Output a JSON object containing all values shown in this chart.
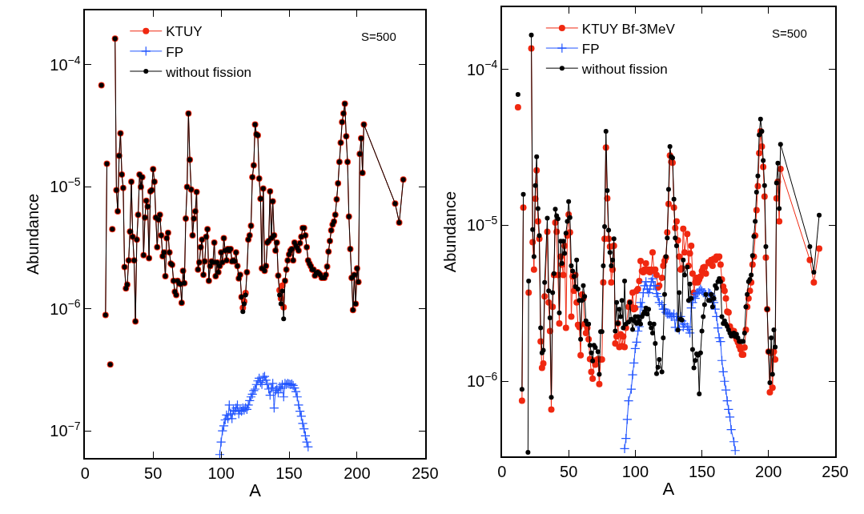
{
  "chart_data": [
    {
      "type": "line",
      "xlabel": "A",
      "ylabel": "Abundance",
      "log": true,
      "legend": "top",
      "annotations": [
        "S=500"
      ],
      "xlim": [
        0,
        250
      ],
      "xticks": [
        0,
        50,
        100,
        150,
        200,
        250
      ],
      "ylim": [
        6e-08,
        0.00028
      ],
      "yticks": [
        {
          "value": 1e-07,
          "label": "10$^{−7}$"
        },
        {
          "value": 1e-06,
          "label": "10$^{−6}$"
        },
        {
          "value": 1e-05,
          "label": "10$^{−5}$"
        },
        {
          "value": 0.0001,
          "label": "10$^{−4}$"
        }
      ],
      "series": [
        {
          "name": "KTUY",
          "color": "#f02810",
          "marker": "circle",
          "x": [
            12,
            13,
            15,
            16,
            17,
            18.5,
            19.5,
            20,
            21,
            22,
            23,
            24,
            25,
            26,
            27,
            28,
            29,
            30,
            31,
            32,
            33,
            34,
            35,
            36,
            37,
            38,
            39,
            40,
            41,
            42,
            43,
            44,
            45,
            46,
            47,
            48,
            49,
            50,
            51,
            52,
            53,
            54,
            55,
            56,
            57,
            58,
            59,
            60,
            61,
            62,
            63,
            64,
            65,
            66,
            67,
            68,
            69,
            70,
            71,
            72,
            73,
            74,
            75,
            76,
            77,
            78,
            79,
            80,
            81,
            82,
            83,
            84,
            85,
            86,
            87,
            88,
            89,
            90,
            91,
            92,
            93,
            94,
            95,
            96,
            97,
            98,
            99,
            100,
            101,
            102,
            103,
            104,
            105,
            106,
            107,
            108,
            109,
            110,
            111,
            112,
            113,
            114,
            115,
            116,
            117,
            118,
            119,
            120,
            121,
            122,
            123,
            124,
            125,
            126,
            127,
            128,
            129,
            130,
            131,
            132,
            133,
            134,
            135,
            136,
            137,
            138,
            139,
            140,
            141,
            142,
            143,
            144,
            145,
            146,
            147,
            148,
            149,
            150,
            151,
            152,
            153,
            154,
            155,
            156,
            157,
            158,
            159,
            160,
            161,
            162,
            163,
            164,
            165,
            166,
            167,
            168,
            169,
            170,
            171,
            172,
            173,
            174,
            175,
            176,
            177,
            178,
            179,
            180,
            181,
            182,
            183,
            184,
            185,
            186,
            187,
            188,
            189,
            190,
            191,
            192,
            193,
            194,
            195,
            196,
            197,
            198,
            199,
            200,
            201,
            202,
            203,
            204,
            205,
            228,
            231,
            234
          ],
          "values": [
            6.8e-05,
            null,
            8.9e-07,
            1.55e-05,
            null,
            3.5e-07,
            null,
            4.5e-06,
            null,
            0.000164,
            9.4e-06,
            6.3e-06,
            1.8e-05,
            2.75e-05,
            1.26e-05,
            9.8e-06,
            2.2e-06,
            1.47e-06,
            1.58e-06,
            2.5e-06,
            4.3e-06,
            1.1e-05,
            3.9e-06,
            2.5e-06,
            7.9e-07,
            3.7e-06,
            5.9e-06,
            1.26e-05,
            1e-05,
            1.2e-05,
            2.75e-06,
            5.6e-06,
            7.7e-06,
            6.9e-06,
            2.6e-06,
            9.2e-06,
            9.4e-06,
            1.4e-05,
            1.1e-05,
            5.6e-06,
            3.2e-06,
            5.4e-06,
            5.9e-06,
            4e-06,
            2.7e-06,
            2.9e-06,
            1.85e-06,
            3.8e-06,
            4.2e-06,
            2.9e-06,
            2.35e-06,
            2.3e-06,
            1.7e-06,
            1.38e-06,
            1.3e-06,
            1.7e-06,
            1.62e-06,
            1.6e-06,
            1.12e-06,
            2.05e-06,
            1.62e-06,
            5.5e-06,
            1e-05,
            4e-05,
            1.67e-05,
            9.5e-06,
            4e-06,
            5.5e-06,
            6.3e-06,
            9.1e-06,
            2.1e-06,
            2.4e-06,
            3.2e-06,
            3.7e-06,
            1.9e-06,
            2.45e-06,
            3.9e-06,
            4.5e-06,
            1.7e-06,
            2.25e-06,
            2.45e-06,
            2.4e-06,
            3.5e-06,
            1.85e-06,
            2.4e-06,
            2e-06,
            2.25e-06,
            2.9e-06,
            2.4e-06,
            3.8e-06,
            3e-06,
            2.5e-06,
            3.1e-06,
            3e-06,
            3.1e-06,
            2.45e-06,
            2.5e-06,
            2.45e-06,
            2.9e-06,
            2.25e-06,
            1.78e-06,
            1.9e-06,
            1.25e-06,
            1.02e-06,
            1.15e-06,
            1.35e-06,
            2e-06,
            3.7e-06,
            4e-06,
            4.8e-06,
            1.2e-05,
            1.5e-05,
            3.25e-05,
            2.7e-05,
            2.65e-05,
            1.17e-05,
            8e-06,
            2.15e-06,
            9.7e-06,
            2.05e-06,
            2.25e-06,
            3.5e-06,
            3.6e-06,
            9.2e-06,
            3.8e-06,
            7.6e-06,
            4e-06,
            3e-06,
            3.5e-06,
            1.87e-06,
            1.42e-06,
            1.22e-06,
            1.55e-06,
            1.03e-06,
            1.7e-06,
            2.1e-06,
            2.5e-06,
            2.8e-06,
            3e-06,
            3.1e-06,
            2.5e-06,
            3.5e-06,
            3.3e-06,
            3.15e-06,
            3e-06,
            3.45e-06,
            3.9e-06,
            4.6e-06,
            4.6e-06,
            4e-06,
            3.2e-06,
            2.5e-06,
            2.35e-06,
            2.24e-06,
            2.1e-06,
            2.1e-06,
            1.87e-06,
            1.95e-06,
            2e-06,
            1.95e-06,
            1.9e-06,
            1.8e-06,
            1.8e-06,
            1.8e-06,
            1.9e-06,
            2.22e-06,
            2.95e-06,
            3.6e-06,
            4.4e-06,
            4.9e-06,
            5.2e-06,
            5.9e-06,
            7.9e-06,
            1.07e-05,
            1.6e-05,
            2.3e-05,
            3.4e-05,
            4e-05,
            4.8e-05,
            2.6e-05,
            1.6e-05,
            5.7e-06,
            3.1e-06,
            1.8e-06,
            9.8e-07,
            1.9e-06,
            1.1e-06,
            2.15e-06,
            1.66e-06,
            1.86e-05,
            2.5e-05,
            1.3e-05,
            3.25e-05,
            7.3e-06,
            5.1e-06,
            1.15e-05
          ]
        },
        {
          "name": "FP",
          "color": "#2255ff",
          "marker": "cross",
          "x": [
            99,
            100,
            101,
            102,
            103,
            104,
            105,
            106,
            107,
            108,
            109,
            110,
            111,
            112,
            113,
            114,
            115,
            116,
            117,
            118,
            119,
            120,
            121,
            122,
            123,
            124,
            125,
            126,
            127,
            128,
            129,
            130,
            131,
            132,
            133,
            134,
            135,
            136,
            137,
            138,
            139,
            140,
            141,
            142,
            143,
            144,
            145,
            146,
            147,
            148,
            149,
            150,
            151,
            152,
            153,
            154,
            155,
            156,
            157,
            158,
            159,
            160,
            161,
            162,
            163,
            164
          ],
          "values": [
            6.4e-08,
            8.1e-08,
            1e-07,
            1.1e-07,
            1.23e-07,
            1.35e-07,
            1.26e-07,
            1.63e-07,
            1.38e-07,
            1.26e-07,
            1.48e-07,
            1.45e-07,
            1.54e-07,
            1.63e-07,
            1.38e-07,
            1.48e-07,
            1.45e-07,
            1.54e-07,
            1.48e-07,
            1.55e-07,
            1.5e-07,
            1.63e-07,
            1.77e-07,
            1.9e-07,
            2e-07,
            2.14e-07,
            2.2e-07,
            2.4e-07,
            2.57e-07,
            2.7e-07,
            2.5e-07,
            2.4e-07,
            2.75e-07,
            2.8e-07,
            2.6e-07,
            2.4e-07,
            2.2e-07,
            1.96e-07,
            2.25e-07,
            2.45e-07,
            1.54e-07,
            2.14e-07,
            2.2e-07,
            2.05e-07,
            2.3e-07,
            2.23e-07,
            2.4e-07,
            1.9e-07,
            2.45e-07,
            2.4e-07,
            2.45e-07,
            2.42e-07,
            2.4e-07,
            2.42e-07,
            2.36e-07,
            2.25e-07,
            2.1e-07,
            1.9e-07,
            1.63e-07,
            1.45e-07,
            1.32e-07,
            1.15e-07,
            1.04e-07,
            9.1e-08,
            8.1e-08,
            7.4e-08
          ]
        },
        {
          "name": "without fission",
          "color": "#000000",
          "marker": "circle",
          "x": [
            12,
            13,
            15,
            16,
            17,
            18.5,
            19.5,
            20,
            21,
            22,
            23,
            24,
            25,
            26,
            27,
            28,
            29,
            30,
            31,
            32,
            33,
            34,
            35,
            36,
            37,
            38,
            39,
            40,
            41,
            42,
            43,
            44,
            45,
            46,
            47,
            48,
            49,
            50,
            51,
            52,
            53,
            54,
            55,
            56,
            57,
            58,
            59,
            60,
            61,
            62,
            63,
            64,
            65,
            66,
            67,
            68,
            69,
            70,
            71,
            72,
            73,
            74,
            75,
            76,
            77,
            78,
            79,
            80,
            81,
            82,
            83,
            84,
            85,
            86,
            87,
            88,
            89,
            90,
            91,
            92,
            93,
            94,
            95,
            96,
            97,
            98,
            99,
            100,
            101,
            102,
            103,
            104,
            105,
            106,
            107,
            108,
            109,
            110,
            111,
            112,
            113,
            114,
            115,
            116,
            117,
            118,
            119,
            120,
            121,
            122,
            123,
            124,
            125,
            126,
            127,
            128,
            129,
            130,
            131,
            132,
            133,
            134,
            135,
            136,
            137,
            138,
            139,
            140,
            141,
            142,
            143,
            144,
            145,
            146,
            147,
            148,
            149,
            150,
            151,
            152,
            153,
            154,
            155,
            156,
            157,
            158,
            159,
            160,
            161,
            162,
            163,
            164,
            165,
            166,
            167,
            168,
            169,
            170,
            171,
            172,
            173,
            174,
            175,
            176,
            177,
            178,
            179,
            180,
            181,
            182,
            183,
            184,
            185,
            186,
            187,
            188,
            189,
            190,
            191,
            192,
            193,
            194,
            195,
            196,
            197,
            198,
            199,
            200,
            201,
            202,
            203,
            204,
            205,
            228,
            231,
            234
          ],
          "values": [
            6.8e-05,
            null,
            8.9e-07,
            1.55e-05,
            null,
            3.5e-07,
            null,
            4.5e-06,
            null,
            0.000164,
            9.4e-06,
            6.3e-06,
            1.8e-05,
            2.75e-05,
            1.26e-05,
            9.8e-06,
            2.2e-06,
            1.47e-06,
            1.58e-06,
            2.5e-06,
            4.3e-06,
            1.1e-05,
            3.9e-06,
            2.5e-06,
            7.9e-07,
            3.7e-06,
            5.9e-06,
            1.26e-05,
            1e-05,
            1.2e-05,
            2.75e-06,
            5.6e-06,
            7.7e-06,
            6.9e-06,
            2.6e-06,
            9.2e-06,
            9.4e-06,
            1.4e-05,
            1.1e-05,
            5.6e-06,
            3.2e-06,
            5.4e-06,
            5.9e-06,
            4e-06,
            2.7e-06,
            2.9e-06,
            1.85e-06,
            3.8e-06,
            4.2e-06,
            2.9e-06,
            2.35e-06,
            2.3e-06,
            1.7e-06,
            1.38e-06,
            1.3e-06,
            1.7e-06,
            1.62e-06,
            1.6e-06,
            1.12e-06,
            2.05e-06,
            1.62e-06,
            5.5e-06,
            1e-05,
            4e-05,
            1.67e-05,
            9.5e-06,
            4e-06,
            5.5e-06,
            6.3e-06,
            9.1e-06,
            2.1e-06,
            2.4e-06,
            3.2e-06,
            3.7e-06,
            1.9e-06,
            2.45e-06,
            3.9e-06,
            4.5e-06,
            1.7e-06,
            2.25e-06,
            2.45e-06,
            2.4e-06,
            3.5e-06,
            1.85e-06,
            2.4e-06,
            2e-06,
            2.25e-06,
            2.9e-06,
            2.4e-06,
            3.8e-06,
            3e-06,
            2.5e-06,
            3.1e-06,
            3e-06,
            3.1e-06,
            2.45e-06,
            2.5e-06,
            2.45e-06,
            2.9e-06,
            2.25e-06,
            1.78e-06,
            1.9e-06,
            1.25e-06,
            9.5e-07,
            1.1e-06,
            1.3e-06,
            2e-06,
            3.7e-06,
            4e-06,
            4.8e-06,
            1.2e-05,
            1.5e-05,
            3.25e-05,
            2.7e-05,
            2.65e-05,
            1.17e-05,
            8e-06,
            2.15e-06,
            9.7e-06,
            2.05e-06,
            2.25e-06,
            3.5e-06,
            3.6e-06,
            9.2e-06,
            3.8e-06,
            7.6e-06,
            4e-06,
            3e-06,
            3.5e-06,
            1.87e-06,
            1.3e-06,
            1.1e-06,
            1.4e-06,
            8.3e-07,
            1.7e-06,
            2.1e-06,
            2.5e-06,
            2.8e-06,
            3e-06,
            3.1e-06,
            2.5e-06,
            3.5e-06,
            3.3e-06,
            3.15e-06,
            3e-06,
            3.45e-06,
            3.9e-06,
            4.6e-06,
            4.6e-06,
            4e-06,
            3.2e-06,
            2.5e-06,
            2.35e-06,
            2.24e-06,
            2.1e-06,
            2.1e-06,
            1.87e-06,
            1.95e-06,
            2e-06,
            1.95e-06,
            1.9e-06,
            1.8e-06,
            1.8e-06,
            1.8e-06,
            1.9e-06,
            2.22e-06,
            2.95e-06,
            3.6e-06,
            4.4e-06,
            4.9e-06,
            5.2e-06,
            5.9e-06,
            7.9e-06,
            1.07e-05,
            1.6e-05,
            2.3e-05,
            3.4e-05,
            4e-05,
            4.8e-05,
            2.6e-05,
            1.6e-05,
            5.7e-06,
            3.1e-06,
            1.8e-06,
            9.8e-07,
            1.9e-06,
            1.1e-06,
            2.15e-06,
            1.66e-06,
            1.86e-05,
            2.5e-05,
            1.3e-05,
            3.25e-05,
            7.3e-06,
            5.1e-06,
            1.15e-05
          ]
        }
      ]
    },
    {
      "type": "line",
      "xlabel": "A",
      "ylabel": "Abundance",
      "log": true,
      "legend": "top",
      "annotations": [
        "S=500"
      ],
      "xlim": [
        0,
        250
      ],
      "xticks": [
        0,
        50,
        100,
        150,
        200,
        250
      ],
      "ylim": [
        3.3e-07,
        0.00025
      ],
      "yticks": [
        {
          "value": 1e-06,
          "label": "10$^{−6}$"
        },
        {
          "value": 1e-05,
          "label": "10$^{−5}$"
        },
        {
          "value": 0.0001,
          "label": "10$^{−4}$"
        }
      ],
      "series": [
        {
          "name": "KTUY Bf-3MeV",
          "color": "#f02810",
          "marker": "circle",
          "x": [
            12,
            13,
            15,
            16,
            17,
            19.5,
            20,
            21,
            22,
            23,
            24,
            25,
            26,
            27,
            28,
            29,
            30,
            31,
            32,
            34,
            35,
            36,
            37,
            38,
            39,
            40,
            41,
            42,
            43,
            44,
            45,
            46,
            47,
            48,
            49,
            50,
            51,
            52,
            53,
            54,
            55,
            56,
            57,
            58,
            59,
            60,
            61,
            62,
            63,
            64,
            65,
            66,
            67,
            68,
            69,
            70,
            72,
            73,
            74,
            75,
            76,
            77,
            78,
            79,
            80,
            81,
            82,
            83,
            84,
            85,
            86,
            87,
            88,
            89,
            90,
            91,
            92,
            93,
            95,
            96,
            97,
            98,
            99,
            100,
            101,
            102,
            103,
            104,
            105,
            106,
            107,
            108,
            109,
            110,
            111,
            112,
            113,
            114,
            115,
            116,
            117,
            118,
            120,
            121,
            122,
            123,
            124,
            125,
            126,
            127,
            128,
            129,
            130,
            131,
            132,
            133,
            134,
            135,
            136,
            137,
            139,
            140,
            141,
            142,
            143,
            144,
            145,
            146,
            147,
            148,
            149,
            150,
            151,
            152,
            153,
            155,
            156,
            157,
            158,
            159,
            160,
            161,
            162,
            163,
            164,
            165,
            166,
            167,
            168,
            169,
            170,
            171,
            172,
            174,
            175,
            176,
            177,
            178,
            179,
            180,
            181,
            182,
            183,
            184,
            185,
            186,
            187,
            188,
            189,
            190,
            191,
            192,
            193,
            194,
            195,
            196,
            197,
            198,
            199,
            200,
            201,
            202,
            203,
            204,
            205,
            206,
            207,
            208,
            209,
            231,
            234,
            238
          ],
          "values": [
            5.7e-05,
            null,
            7.5e-07,
            1.3e-05,
            null,
            null,
            3.7e-06,
            null,
            0.000136,
            7.8e-06,
            5.2e-06,
            1.48e-05,
            2.25e-05,
            1.06e-05,
            8.2e-06,
            1.8e-06,
            1.22e-06,
            1.3e-06,
            3.5e-06,
            9.1e-06,
            3.2e-06,
            2.1e-06,
            6.6e-07,
            3e-06,
            4.8e-06,
            1.04e-05,
            9.1e-06,
            4.8e-06,
            2.35e-06,
            6.3e-06,
            5.6e-06,
            4.8e-06,
            7.4e-06,
            2.2e-06,
            8.6e-06,
            1.17e-05,
            9e-06,
            2.6e-06,
            4.7e-06,
            3.8e-06,
            4.8e-06,
            3.2e-06,
            2.3e-06,
            2.23e-06,
            1.47e-06,
            3.6e-06,
            3.4e-06,
            2.33e-06,
            2.04e-06,
            2.2e-06,
            1.86e-06,
            1.39e-06,
            1.15e-06,
            1.04e-06,
            1.36e-06,
            1.28e-06,
            1.39e-06,
            9.6e-07,
            1.38e-06,
            1.38e-06,
            4.3e-06,
            8.2e-06,
            3.15e-05,
            1.49e-05,
            8.2e-06,
            7.3e-06,
            4.3e-06,
            5.2e-06,
            7.4e-06,
            1.75e-06,
            1.94e-06,
            2.35e-06,
            1.66e-06,
            2e-06,
            1.68e-06,
            1.94e-06,
            1.66e-06,
            2.2e-06,
            3e-06,
            3.2e-06,
            3e-06,
            3.7e-06,
            2.9e-06,
            2.95e-06,
            3.8e-06,
            3.9e-06,
            4.4e-06,
            5.9e-06,
            5.1e-06,
            5e-06,
            5.2e-06,
            5.7e-06,
            5.1e-06,
            5.2e-06,
            5e-06,
            5.2e-06,
            6.7e-06,
            5.1e-06,
            5.2e-06,
            4.8e-06,
            4e-06,
            4.1e-06,
            4.6e-06,
            5.5e-06,
            5.9e-06,
            6.2e-06,
            9e-06,
            1.37e-05,
            2.8e-05,
            2.55e-05,
            2.52e-05,
            1.3e-05,
            9.6e-06,
            1.06e-05,
            8e-06,
            6.3e-06,
            5.2e-06,
            5.3e-06,
            9.5e-06,
            6.7e-06,
            8.8e-06,
            5.5e-06,
            6.6e-06,
            7.4e-06,
            4.9e-06,
            3.7e-06,
            4.3e-06,
            4.6e-06,
            4.3e-06,
            4.5e-06,
            4.7e-06,
            5.1e-06,
            5.35e-06,
            5.4e-06,
            4.9e-06,
            5.8e-06,
            5.7e-06,
            6e-06,
            5.5e-06,
            6.1e-06,
            6e-06,
            6.3e-06,
            6.2e-06,
            6.3e-06,
            5.6e-06,
            4.5e-06,
            4.05e-06,
            3.8e-06,
            3.4e-06,
            2.8e-06,
            2.76e-06,
            2.25e-06,
            2.13e-06,
            2.1e-06,
            1.95e-06,
            1.86e-06,
            1.78e-06,
            1.68e-06,
            1.6e-06,
            1.48e-06,
            1.48e-06,
            1.65e-06,
            2.14e-06,
            3e-06,
            3.4e-06,
            3.8e-06,
            4.3e-06,
            5.6e-06,
            6.3e-06,
            8.6e-06,
            1.25e-05,
            1.78e-05,
            2.9e-05,
            4e-05,
            3.2e-05,
            2.37e-05,
            1.53e-05,
            6.2e-06,
            2.9e-06,
            1.55e-06,
            8.5e-07,
            1.52e-06,
            9.1e-07,
            1.55e-06,
            1.38e-06,
            1.49e-05,
            1.9e-05,
            1.06e-05,
            2.3e-05,
            6e-06,
            4.3e-06,
            7.1e-06
          ]
        },
        {
          "name": "FP",
          "color": "#2255ff",
          "marker": "cross",
          "x": [
            92,
            93,
            94,
            95,
            97,
            98,
            99,
            100,
            101,
            102,
            103,
            104,
            105,
            106,
            107,
            108,
            109,
            110,
            111,
            112,
            113,
            114,
            115,
            116,
            117,
            118,
            120,
            121,
            122,
            123,
            124,
            125,
            126,
            127,
            128,
            129,
            130,
            131,
            132,
            133,
            134,
            135,
            136,
            137,
            139,
            140,
            141,
            142,
            143,
            144,
            145,
            146,
            147,
            148,
            149,
            150,
            151,
            152,
            153,
            155,
            156,
            157,
            158,
            159,
            160,
            161,
            162,
            163,
            164,
            165,
            166,
            167,
            168,
            169,
            170,
            171,
            172,
            174,
            175
          ],
          "values": [
            3.7e-07,
            4.3e-07,
            5.7e-07,
            7.5e-07,
            8.9e-07,
            1.1e-06,
            1.31e-06,
            1.62e-06,
            1.78e-06,
            2.1e-06,
            2.24e-06,
            3.2e-06,
            3e-06,
            3.7e-06,
            4.1e-06,
            4.35e-06,
            3.9e-06,
            3.7e-06,
            3.9e-06,
            4.35e-06,
            4.55e-06,
            4.1e-06,
            4.1e-06,
            3.65e-06,
            3.5e-06,
            3.2e-06,
            3.1e-06,
            2.9e-06,
            2.9e-06,
            2.77e-06,
            2.7e-06,
            2.7e-06,
            2.7e-06,
            2.6e-06,
            2.6e-06,
            2.7e-06,
            2.22e-06,
            2.6e-06,
            2.47e-06,
            2.14e-06,
            2.6e-06,
            2.44e-06,
            2.23e-06,
            2.33e-06,
            2.23e-06,
            2.15e-06,
            2.04e-06,
            2.95e-06,
            3.2e-06,
            3.5e-06,
            3.4e-06,
            3.65e-06,
            3.7e-06,
            3.8e-06,
            3.9e-06,
            3.8e-06,
            3.7e-06,
            3.7e-06,
            3.6e-06,
            3.7e-06,
            3.65e-06,
            3.55e-06,
            3.3e-06,
            3.2e-06,
            2.9e-06,
            2.6e-06,
            2.2e-06,
            1.9e-06,
            1.8e-06,
            1.36e-06,
            1.15e-06,
            1e-06,
            8.8e-07,
            7.5e-07,
            6.6e-07,
            5.9e-07,
            4.9e-07,
            4.1e-07,
            3.6e-07
          ]
        },
        {
          "name": "without fission",
          "color": "#000000",
          "marker": "circle",
          "x": [
            12,
            13,
            15,
            16,
            17,
            19.5,
            20,
            21,
            22,
            23,
            24,
            25,
            26,
            27,
            28,
            29,
            30,
            31,
            32,
            34,
            35,
            36,
            37,
            38,
            39,
            40,
            41,
            42,
            43,
            44,
            45,
            46,
            47,
            48,
            49,
            50,
            51,
            52,
            53,
            54,
            55,
            56,
            57,
            58,
            59,
            60,
            61,
            62,
            63,
            64,
            65,
            66,
            67,
            68,
            69,
            70,
            72,
            73,
            74,
            75,
            76,
            77,
            78,
            79,
            80,
            81,
            82,
            83,
            84,
            85,
            86,
            87,
            88,
            89,
            90,
            91,
            92,
            93,
            95,
            96,
            97,
            98,
            99,
            100,
            101,
            102,
            103,
            104,
            105,
            106,
            107,
            108,
            109,
            110,
            111,
            112,
            113,
            114,
            115,
            116,
            117,
            118,
            120,
            121,
            122,
            123,
            124,
            125,
            126,
            127,
            128,
            129,
            130,
            131,
            132,
            133,
            134,
            135,
            136,
            137,
            139,
            140,
            141,
            142,
            143,
            144,
            145,
            146,
            147,
            148,
            149,
            150,
            151,
            152,
            153,
            155,
            156,
            157,
            158,
            159,
            160,
            161,
            162,
            163,
            164,
            165,
            166,
            167,
            168,
            169,
            170,
            171,
            172,
            174,
            175,
            176,
            177,
            178,
            179,
            180,
            181,
            182,
            183,
            184,
            185,
            186,
            187,
            188,
            189,
            190,
            191,
            192,
            193,
            194,
            195,
            196,
            197,
            198,
            199,
            200,
            201,
            202,
            203,
            204,
            205,
            206,
            207,
            208,
            209,
            231,
            234,
            238
          ],
          "values": [
            6.9e-05,
            null,
            8.9e-07,
            1.58e-05,
            null,
            3.5e-07,
            4.4e-06,
            null,
            0.000166,
            9.4e-06,
            6.3e-06,
            1.8e-05,
            2.75e-05,
            1.28e-05,
            8.6e-06,
            2.2e-06,
            1.52e-06,
            1.58e-06,
            4.3e-06,
            1.11e-05,
            3.8e-06,
            2.55e-06,
            7.9e-07,
            3.7e-06,
            4.9e-06,
            1.27e-05,
            1.15e-05,
            1.1e-05,
            2.75e-06,
            7.9e-06,
            5.7e-06,
            7.9e-06,
            6.6e-06,
            8.9e-06,
            1.06e-05,
            1.42e-05,
            1.12e-05,
            5.5e-06,
            5.1e-06,
            4.7e-06,
            4.05e-06,
            6e-06,
            3.9e-06,
            3.3e-06,
            1.86e-06,
            3.3e-06,
            4.1e-06,
            3.5e-06,
            2.44e-06,
            2.33e-06,
            2.33e-06,
            1.7e-06,
            1.52e-06,
            1.35e-06,
            1.7e-06,
            1.65e-06,
            1.55e-06,
            1.11e-06,
            2.08e-06,
            2.08e-06,
            5.5e-06,
            9.8e-06,
            4e-05,
            1.67e-05,
            9.3e-06,
            6.7e-06,
            5.5e-06,
            6e-06,
            8.2e-06,
            2.1e-06,
            3.2e-06,
            2.35e-06,
            2.9e-06,
            2.6e-06,
            3.3e-06,
            2.2e-06,
            4.4e-06,
            2.33e-06,
            2.4e-06,
            3.2e-06,
            2.5e-06,
            2.15e-06,
            2.44e-06,
            2.6e-06,
            2.35e-06,
            2.6e-06,
            2.44e-06,
            2.33e-06,
            2.6e-06,
            2.7e-06,
            2.8e-06,
            2.95e-06,
            2.7e-06,
            2.9e-06,
            2.35e-06,
            2.2e-06,
            2.04e-06,
            2.33e-06,
            1.75e-06,
            1.12e-06,
            1.23e-06,
            1.38e-06,
            1.15e-06,
            1.9e-06,
            3.6e-06,
            6.3e-06,
            8.3e-06,
            1.7e-05,
            3.2e-05,
            2.75e-05,
            2.7e-05,
            1.47e-05,
            8.3e-06,
            7.4e-06,
            2.13e-06,
            3.7e-06,
            2.5e-06,
            2.47e-06,
            6e-06,
            4.8e-06,
            5.4e-06,
            3.3e-06,
            4.2e-06,
            3.4e-06,
            1.6e-06,
            1.22e-06,
            1.36e-06,
            1.5e-06,
            1.47e-06,
            8.3e-07,
            1.52e-06,
            2.1e-06,
            2.6e-06,
            3.1e-06,
            3.6e-06,
            3.3e-06,
            3.3e-06,
            3.6e-06,
            3e-06,
            3.4e-06,
            4.1e-06,
            3.95e-06,
            4.35e-06,
            4.55e-06,
            4.35e-06,
            2.6e-06,
            2.35e-06,
            2.44e-06,
            2.33e-06,
            2.25e-06,
            2.14e-06,
            2.04e-06,
            1.95e-06,
            2.04e-06,
            1.94e-06,
            2e-06,
            1.9e-06,
            1.8e-06,
            1.8e-06,
            1.8e-06,
            1.8e-06,
            2.04e-06,
            3e-06,
            3.6e-06,
            4.35e-06,
            4.5e-06,
            4.8e-06,
            6.4e-06,
            8.5e-06,
            1.06e-05,
            1.63e-05,
            2.07e-05,
            3.8e-05,
            4.8e-05,
            4e-05,
            2.6e-05,
            1.8e-05,
            7.3e-06,
            2.9e-06,
            1.55e-06,
            9.8e-07,
            1.9e-06,
            1.11e-06,
            2.14e-06,
            1.66e-06,
            1.87e-05,
            2.5e-05,
            1.28e-05,
            3.3e-05,
            7.3e-06,
            5e-06,
            1.16e-05
          ]
        }
      ]
    }
  ]
}
